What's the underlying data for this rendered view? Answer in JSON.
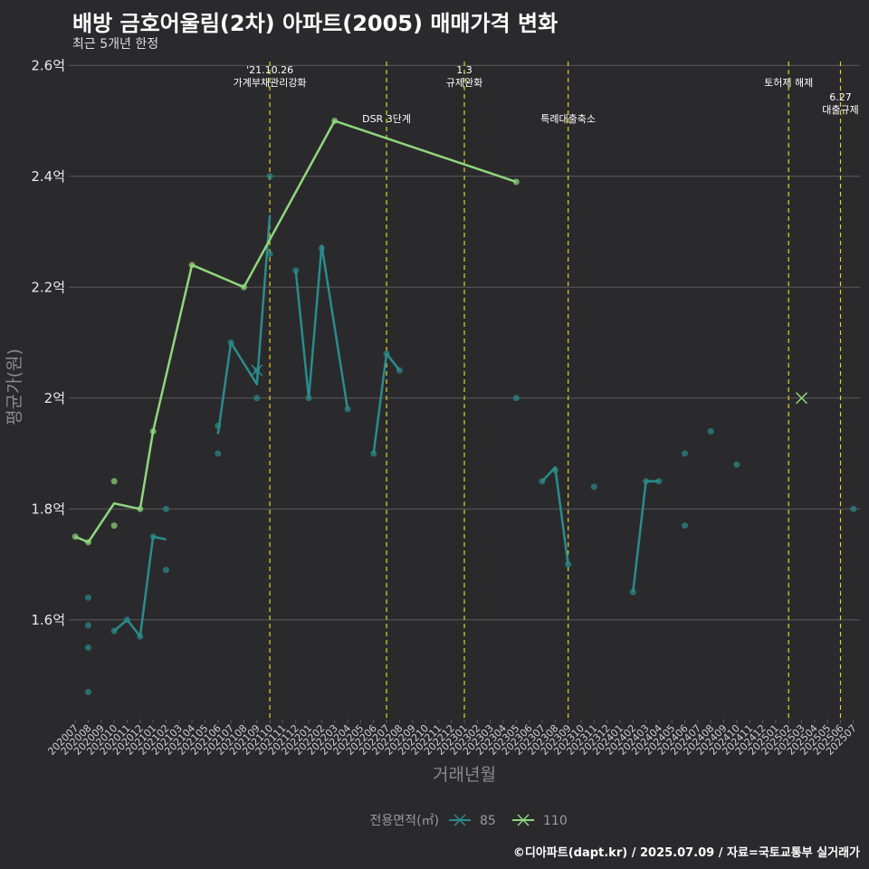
{
  "title": "배방 금호어울림(2차) 아파트(2005) 매매가격 변화",
  "subtitle": "최근 5개년 한정",
  "credit": "©디아파트(dapt.kr) / 2025.07.09 / 자료=국토교통부 실거래가",
  "colors": {
    "background": "#2a2a2c",
    "grid": "#5a5a5c",
    "event_line": "#e5d21f",
    "s85": "#2a8c8c",
    "s110": "#8fd67e"
  },
  "chart_data": {
    "type": "line",
    "xlabel": "거래년월",
    "ylabel": "평균가(원)",
    "yticks": [
      {
        "value": 1.6,
        "label": "1.6억"
      },
      {
        "value": 1.8,
        "label": "1.8억"
      },
      {
        "value": 2.0,
        "label": "2억"
      },
      {
        "value": 2.2,
        "label": "2.2억"
      },
      {
        "value": 2.4,
        "label": "2.4억"
      },
      {
        "value": 2.6,
        "label": "2.6억"
      }
    ],
    "ylim": [
      1.42,
      2.62
    ],
    "categories": [
      "202007",
      "202008",
      "202009",
      "202010",
      "202011",
      "202012",
      "202101",
      "202102",
      "202103",
      "202104",
      "202105",
      "202106",
      "202107",
      "202108",
      "202109",
      "202110",
      "202111",
      "202112",
      "202201",
      "202202",
      "202203",
      "202204",
      "202205",
      "202206",
      "202207",
      "202208",
      "202209",
      "202210",
      "202211",
      "202212",
      "202301",
      "202302",
      "202303",
      "202304",
      "202305",
      "202306",
      "202307",
      "202308",
      "202309",
      "202310",
      "202311",
      "202312",
      "202401",
      "202402",
      "202403",
      "202404",
      "202405",
      "202406",
      "202407",
      "202408",
      "202409",
      "202410",
      "202411",
      "202412",
      "202501",
      "202502",
      "202503",
      "202504",
      "202505",
      "202506",
      "202507"
    ],
    "legend": {
      "title": "전용면적(㎡)",
      "entries": [
        "85",
        "110"
      ],
      "position": "bottom"
    },
    "events": [
      {
        "x": "202110",
        "label": [
          "'21.10.26",
          "가계부채관리강화"
        ],
        "level": 1
      },
      {
        "x": "202207",
        "label": [
          "DSR 3단계"
        ],
        "level": 2
      },
      {
        "x": "202301",
        "label": [
          "1.3",
          "규제완화"
        ],
        "level": 1
      },
      {
        "x": "202309",
        "label": [
          "특례대출축소"
        ],
        "level": 2
      },
      {
        "x": "202502",
        "label": [
          "토허제 해제"
        ],
        "level": 1
      },
      {
        "x": "202506",
        "label": [
          "6.27",
          "대출규제"
        ],
        "level": 3
      }
    ],
    "series": [
      {
        "name": "85",
        "points": [
          [
            "202008",
            1.64
          ],
          [
            "202008",
            1.59
          ],
          [
            "202008",
            1.55
          ],
          [
            "202008",
            1.47
          ],
          [
            "202010",
            1.58
          ],
          [
            "202011",
            1.6
          ],
          [
            "202012",
            1.57
          ],
          [
            "202101",
            1.75
          ],
          [
            "202102",
            1.8
          ],
          [
            "202102",
            1.69
          ],
          [
            "202106",
            1.95
          ],
          [
            "202106",
            1.9
          ],
          [
            "202107",
            2.1
          ],
          [
            "202109",
            2.0
          ],
          [
            "202109",
            2.05
          ],
          [
            "202110",
            2.4
          ],
          [
            "202110",
            2.26
          ],
          [
            "202112",
            2.23
          ],
          [
            "202201",
            2.0
          ],
          [
            "202202",
            2.27
          ],
          [
            "202204",
            1.98
          ],
          [
            "202206",
            1.9
          ],
          [
            "202207",
            2.08
          ],
          [
            "202208",
            2.05
          ],
          [
            "202305",
            2.0
          ],
          [
            "202307",
            1.85
          ],
          [
            "202308",
            1.87
          ],
          [
            "202309",
            1.7
          ],
          [
            "202311",
            1.84
          ],
          [
            "202402",
            1.65
          ],
          [
            "202403",
            1.85
          ],
          [
            "202404",
            1.85
          ],
          [
            "202406",
            1.9
          ],
          [
            "202406",
            1.77
          ],
          [
            "202408",
            1.94
          ],
          [
            "202410",
            1.88
          ],
          [
            "202507",
            1.8
          ]
        ],
        "lines": [
          [
            [
              "202010",
              1.58
            ],
            [
              "202011",
              1.6
            ],
            [
              "202012",
              1.57
            ],
            [
              "202101",
              1.75
            ],
            [
              "202102",
              1.745
            ]
          ],
          [
            [
              "202106",
              1.935
            ],
            [
              "202107",
              2.1
            ],
            [
              "202109",
              2.025
            ],
            [
              "202110",
              2.33
            ]
          ],
          [
            [
              "202112",
              2.23
            ],
            [
              "202201",
              2.0
            ],
            [
              "202202",
              2.275
            ],
            [
              "202204",
              1.98
            ]
          ],
          [
            [
              "202206",
              1.9
            ],
            [
              "202207",
              2.08
            ],
            [
              "202208",
              2.05
            ]
          ],
          [
            [
              "202307",
              1.85
            ],
            [
              "202308",
              1.875
            ],
            [
              "202309",
              1.7
            ]
          ],
          [
            [
              "202402",
              1.65
            ],
            [
              "202403",
              1.85
            ],
            [
              "202404",
              1.85
            ]
          ]
        ],
        "cross_points": [
          [
            "202109",
            2.05
          ]
        ]
      },
      {
        "name": "110",
        "points": [
          [
            "202007",
            1.75
          ],
          [
            "202008",
            1.74
          ],
          [
            "202010",
            1.85
          ],
          [
            "202010",
            1.77
          ],
          [
            "202012",
            1.8
          ],
          [
            "202101",
            1.94
          ],
          [
            "202104",
            2.24
          ],
          [
            "202108",
            2.2
          ],
          [
            "202203",
            2.5
          ],
          [
            "202305",
            2.39
          ]
        ],
        "lines": [
          [
            [
              "202007",
              1.75
            ],
            [
              "202008",
              1.74
            ],
            [
              "202010",
              1.81
            ],
            [
              "202012",
              1.8
            ],
            [
              "202101",
              1.94
            ],
            [
              "202104",
              2.24
            ],
            [
              "202108",
              2.2
            ],
            [
              "202203",
              2.5
            ],
            [
              "202305",
              2.39
            ]
          ]
        ],
        "cross_points": [
          [
            "202503",
            2.0
          ]
        ]
      }
    ]
  }
}
